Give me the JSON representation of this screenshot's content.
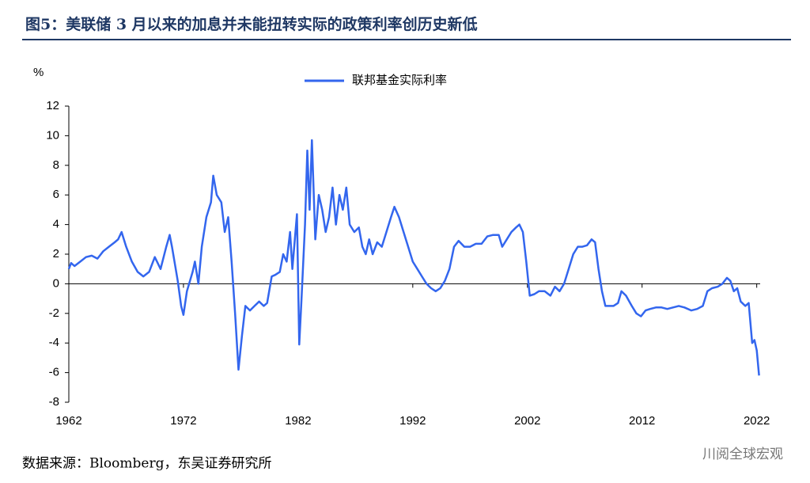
{
  "chart_data": {
    "type": "line",
    "title": "图5：美联储 3 月以来的加息并未能扭转实际的政策利率创历史新低",
    "y_label": "%",
    "source": "数据来源：Bloomberg，东吴证券研究所",
    "watermark": "川阅全球宏观",
    "xlim": [
      1962,
      2022.3
    ],
    "xticks": [
      1962,
      1972,
      1982,
      1992,
      2002,
      2012,
      2022
    ],
    "ylim": [
      -8,
      12
    ],
    "yticks": [
      -8,
      -6,
      -4,
      -2,
      0,
      2,
      4,
      6,
      8,
      10,
      12
    ],
    "legend": "top",
    "x": [
      1962,
      1962.2,
      1962.5,
      1963,
      1963.5,
      1964,
      1964.5,
      1965,
      1965.5,
      1966,
      1966.3,
      1966.6,
      1967,
      1967.5,
      1968,
      1968.5,
      1969,
      1969.5,
      1970,
      1970.5,
      1970.8,
      1971,
      1971.5,
      1971.8,
      1972,
      1972.3,
      1972.8,
      1973,
      1973.3,
      1973.6,
      1974,
      1974.4,
      1974.6,
      1974.9,
      1975.3,
      1975.6,
      1975.9,
      1976.2,
      1976.5,
      1976.8,
      1977.1,
      1977.4,
      1977.8,
      1978.2,
      1978.6,
      1979,
      1979.3,
      1979.7,
      1980,
      1980.4,
      1980.7,
      1981,
      1981.3,
      1981.5,
      1981.9,
      1982.1,
      1982.3,
      1982.6,
      1982.8,
      1983,
      1983.2,
      1983.5,
      1983.8,
      1984.1,
      1984.4,
      1984.7,
      1985,
      1985.3,
      1985.6,
      1985.9,
      1986.2,
      1986.5,
      1986.9,
      1987.3,
      1987.6,
      1987.9,
      1988.2,
      1988.5,
      1988.9,
      1989.3,
      1989.7,
      1990.1,
      1990.4,
      1990.8,
      1991.2,
      1991.6,
      1992,
      1992.4,
      1992.8,
      1993.2,
      1993.6,
      1994,
      1994.4,
      1994.8,
      1995.2,
      1995.6,
      1996,
      1996.5,
      1997,
      1997.5,
      1998,
      1998.5,
      1999,
      1999.5,
      1999.8,
      2000.2,
      2000.6,
      2001,
      2001.3,
      2001.6,
      2001.9,
      2002.2,
      2002.6,
      2003,
      2003.5,
      2004,
      2004.4,
      2004.8,
      2005.2,
      2005.6,
      2006,
      2006.4,
      2006.8,
      2007.2,
      2007.6,
      2007.9,
      2008.2,
      2008.5,
      2008.8,
      2009.2,
      2009.5,
      2009.9,
      2010.2,
      2010.6,
      2011.1,
      2011.5,
      2011.9,
      2012.3,
      2012.7,
      2013.2,
      2013.7,
      2014.2,
      2014.7,
      2015.2,
      2015.7,
      2016.3,
      2016.8,
      2017.3,
      2017.7,
      2018.1,
      2018.6,
      2019,
      2019.4,
      2019.7,
      2020,
      2020.3,
      2020.6,
      2021,
      2021.3,
      2021.6,
      2021.8,
      2022,
      2022.2
    ],
    "series": [
      {
        "name": "联邦基金实际利率",
        "color": "#3366ee",
        "values": [
          1.0,
          1.4,
          1.2,
          1.5,
          1.8,
          1.9,
          1.7,
          2.2,
          2.5,
          2.8,
          3.0,
          3.5,
          2.5,
          1.5,
          0.8,
          0.5,
          0.8,
          1.8,
          1.0,
          2.5,
          3.3,
          2.5,
          0.2,
          -1.5,
          -2.1,
          -0.5,
          0.8,
          1.5,
          0,
          2.5,
          4.5,
          5.5,
          7.3,
          6.0,
          5.5,
          3.5,
          4.5,
          1.5,
          -2,
          -5.8,
          -3.5,
          -1.5,
          -1.8,
          -1.5,
          -1.2,
          -1.5,
          -1.3,
          0.5,
          0.6,
          0.8,
          2.0,
          1.5,
          3.5,
          1.0,
          4.7,
          -4.1,
          -1.0,
          4.0,
          9.0,
          5.0,
          9.7,
          3.0,
          6.0,
          5.0,
          3.5,
          4.5,
          6.5,
          4.0,
          6.0,
          5.0,
          6.5,
          4.0,
          3.5,
          3.8,
          2.5,
          2.0,
          3.0,
          2.0,
          2.8,
          2.5,
          3.5,
          4.5,
          5.2,
          4.5,
          3.5,
          2.5,
          1.5,
          1.0,
          0.5,
          0,
          -0.3,
          -0.5,
          -0.3,
          0.2,
          1.0,
          2.5,
          2.9,
          2.5,
          2.5,
          2.7,
          2.7,
          3.2,
          3.3,
          3.3,
          2.5,
          3.0,
          3.5,
          3.8,
          4.0,
          3.5,
          1.5,
          -0.8,
          -0.7,
          -0.5,
          -0.5,
          -0.8,
          -0.2,
          -0.5,
          0,
          1.0,
          2.0,
          2.5,
          2.5,
          2.6,
          3.0,
          2.8,
          1.0,
          -0.5,
          -1.5,
          -1.5,
          -1.5,
          -1.3,
          -0.5,
          -0.8,
          -1.5,
          -2.0,
          -2.2,
          -1.8,
          -1.7,
          -1.6,
          -1.6,
          -1.7,
          -1.6,
          -1.5,
          -1.6,
          -1.8,
          -1.7,
          -1.5,
          -0.5,
          -0.3,
          -0.2,
          0.0,
          0.4,
          0.2,
          -0.5,
          -0.3,
          -1.2,
          -1.5,
          -1.3,
          -4.0,
          -3.8,
          -4.5,
          -6.2
        ]
      }
    ]
  }
}
